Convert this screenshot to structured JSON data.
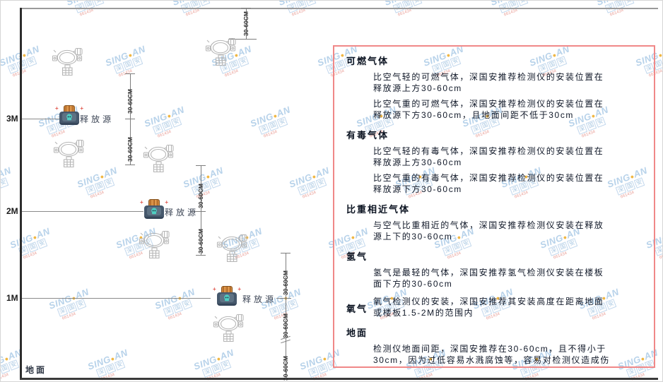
{
  "diagram": {
    "ground_label": "地面",
    "release_source_label": "释放源",
    "dimension_label": "30-60CM",
    "height_marks": [
      "3M",
      "2M",
      "1M"
    ]
  },
  "panel": {
    "sections": [
      {
        "heading": "可燃气体",
        "inline": false,
        "paragraphs": [
          "比空气轻的可燃气体，深国安推荐检测仪的安装位置在释放源上方30-60cm",
          "比空气重的可燃气体，深国安推荐检测仪的安装位置在释放源下方30-60cm，且地面间距不低于30cm"
        ]
      },
      {
        "heading": "有毒气体",
        "inline": false,
        "paragraphs": [
          "比空气轻的有毒气体，深国安推荐检测仪的安装位置在释放源上方30-60cm",
          "比空气重的有毒气体，深国安推荐检测仪的安装位置在释放源下方30-60cm"
        ]
      },
      {
        "heading": "比重相近气体",
        "inline": false,
        "paragraphs": [
          "与空气比重相近的气体，深国安推荐检测仪安装在释放源上下的30-60cm"
        ]
      },
      {
        "heading": "氢气",
        "inline": false,
        "paragraphs": [
          "氢气是最轻的气体，深国安推荐氢气检测仪安装在楼板面下方的30-60cm"
        ]
      },
      {
        "heading": "氧气",
        "inline": true,
        "paragraphs": [
          "氧气检测仪的安装，深国安推荐其安装高度在距离地面或楼板1.5-2M的范围内"
        ]
      },
      {
        "heading": "地面",
        "inline": false,
        "paragraphs": [
          "检测仪地面间距，深国安推荐在30-60cm，且不得小于30cm，因为过低容易水溅腐蚀等，容易对检测仪造成伤害"
        ]
      }
    ]
  },
  "watermark": {
    "brand_left": "SING",
    "brand_dot": "●",
    "brand_right": "AN",
    "boxed_chars": [
      "深",
      "国",
      "安"
    ],
    "phone": "661434"
  },
  "colors": {
    "panel_border": "#f08888",
    "watermark_blue": "#b4d0e9",
    "watermark_gold": "#f0b43a",
    "source_body": "#46586c",
    "source_cap": "#c9803a",
    "skull_teal": "#4fd0c3",
    "detector_stroke": "#b6b6b6"
  }
}
